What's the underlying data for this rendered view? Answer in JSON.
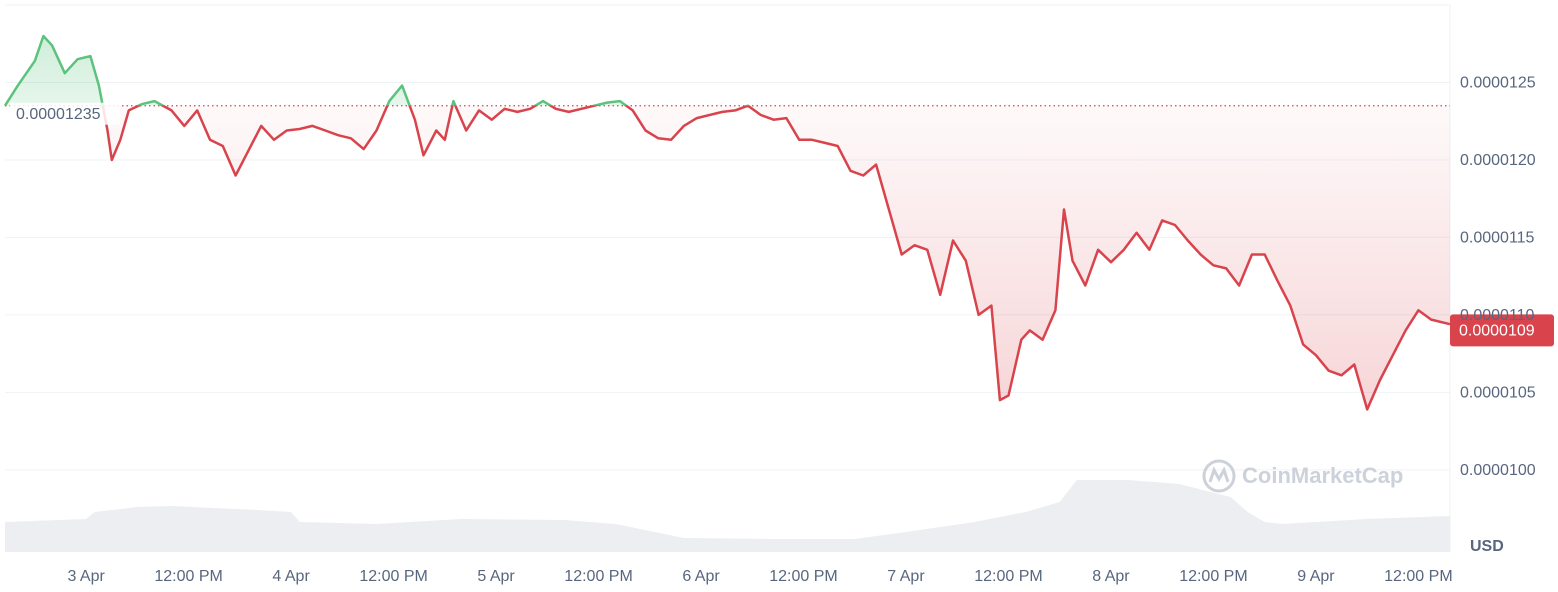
{
  "chart_data": {
    "type": "line",
    "currency": "USD",
    "watermark": "CoinMarketCap",
    "up_color": "#5bc37d",
    "down_color": "#d9434c",
    "grid": true,
    "baseline": {
      "value": 1.235e-05,
      "label": "0.00001235"
    },
    "current_price": {
      "value": 1.09e-05,
      "label": "0.0000109"
    },
    "xlim": [
      -9.5,
      159.7
    ],
    "xticks": [
      {
        "value": 0,
        "label": "3 Apr"
      },
      {
        "value": 12,
        "label": "12:00 PM"
      },
      {
        "value": 24,
        "label": "4 Apr"
      },
      {
        "value": 36,
        "label": "12:00 PM"
      },
      {
        "value": 48,
        "label": "5 Apr"
      },
      {
        "value": 60,
        "label": "12:00 PM"
      },
      {
        "value": 72,
        "label": "6 Apr"
      },
      {
        "value": 84,
        "label": "12:00 PM"
      },
      {
        "value": 96,
        "label": "7 Apr"
      },
      {
        "value": 108,
        "label": "12:00 PM"
      },
      {
        "value": 120,
        "label": "8 Apr"
      },
      {
        "value": 132,
        "label": "12:00 PM"
      },
      {
        "value": 144,
        "label": "9 Apr"
      },
      {
        "value": 156,
        "label": "12:00 PM"
      }
    ],
    "ylim": [
      9.47e-06,
      1.3e-05
    ],
    "yticks": [
      {
        "value": 1e-05,
        "label": "0.0000100"
      },
      {
        "value": 1.05e-05,
        "label": "0.0000105"
      },
      {
        "value": 1.1e-05,
        "label": "0.0000110"
      },
      {
        "value": 1.15e-05,
        "label": "0.0000115"
      },
      {
        "value": 1.2e-05,
        "label": "0.0000120"
      },
      {
        "value": 1.25e-05,
        "label": "0.0000125"
      }
    ],
    "x": [
      -9.5,
      -8,
      -6,
      -5,
      -4,
      -2.5,
      -1,
      0.5,
      1.5,
      2.5,
      3,
      4,
      5,
      6.5,
      8,
      10,
      11.5,
      13,
      14.5,
      16,
      17.5,
      19,
      20.5,
      22,
      23.5,
      25,
      26.5,
      28,
      29.5,
      31,
      32.5,
      34,
      35.5,
      37,
      38.5,
      39.5,
      41,
      42,
      43,
      44.5,
      46,
      47.5,
      49,
      50.5,
      52,
      53.5,
      55,
      56.5,
      58,
      59.5,
      61,
      62.5,
      64,
      65.5,
      67,
      68.5,
      70,
      71.5,
      73,
      74.5,
      76,
      77.5,
      79,
      80.5,
      82,
      83.5,
      85,
      86.5,
      88,
      89.5,
      91,
      92.5,
      94,
      95.5,
      97,
      98.5,
      100,
      101.5,
      103,
      104.5,
      106,
      107,
      108,
      109.5,
      110.5,
      112,
      113.5,
      114.5,
      115.5,
      117,
      118.5,
      120,
      121.5,
      123,
      124.5,
      126,
      127.5,
      129,
      130.5,
      132,
      133.5,
      135,
      136.5,
      138,
      139.5,
      141,
      142.5,
      144,
      145.5,
      147,
      148.5,
      150,
      151.5,
      153,
      154.5,
      156,
      157.5,
      159.7
    ],
    "values": [
      1.235e-05,
      1.248e-05,
      1.264e-05,
      1.28e-05,
      1.274e-05,
      1.256e-05,
      1.265e-05,
      1.267e-05,
      1.248e-05,
      1.219e-05,
      1.2e-05,
      1.213e-05,
      1.232e-05,
      1.236e-05,
      1.238e-05,
      1.232e-05,
      1.222e-05,
      1.232e-05,
      1.213e-05,
      1.209e-05,
      1.19e-05,
      1.206e-05,
      1.222e-05,
      1.213e-05,
      1.219e-05,
      1.22e-05,
      1.222e-05,
      1.219e-05,
      1.216e-05,
      1.214e-05,
      1.207e-05,
      1.219e-05,
      1.238e-05,
      1.248e-05,
      1.226e-05,
      1.203e-05,
      1.219e-05,
      1.213e-05,
      1.238e-05,
      1.219e-05,
      1.232e-05,
      1.226e-05,
      1.233e-05,
      1.231e-05,
      1.233e-05,
      1.238e-05,
      1.233e-05,
      1.231e-05,
      1.233e-05,
      1.235e-05,
      1.237e-05,
      1.238e-05,
      1.232e-05,
      1.219e-05,
      1.214e-05,
      1.213e-05,
      1.222e-05,
      1.227e-05,
      1.229e-05,
      1.231e-05,
      1.232e-05,
      1.235e-05,
      1.229e-05,
      1.226e-05,
      1.227e-05,
      1.213e-05,
      1.213e-05,
      1.211e-05,
      1.209e-05,
      1.193e-05,
      1.19e-05,
      1.197e-05,
      1.168e-05,
      1.139e-05,
      1.145e-05,
      1.142e-05,
      1.113e-05,
      1.148e-05,
      1.135e-05,
      1.1e-05,
      1.106e-05,
      1.045e-05,
      1.048e-05,
      1.084e-05,
      1.09e-05,
      1.084e-05,
      1.103e-05,
      1.168e-05,
      1.135e-05,
      1.119e-05,
      1.142e-05,
      1.134e-05,
      1.142e-05,
      1.153e-05,
      1.142e-05,
      1.161e-05,
      1.158e-05,
      1.148e-05,
      1.139e-05,
      1.132e-05,
      1.13e-05,
      1.119e-05,
      1.139e-05,
      1.139e-05,
      1.122e-05,
      1.106e-05,
      1.081e-05,
      1.074e-05,
      1.064e-05,
      1.061e-05,
      1.068e-05,
      1.039e-05,
      1.058e-05,
      1.074e-05,
      1.09e-05,
      1.103e-05,
      1.097e-05,
      1.094e-05
    ],
    "volume": {
      "color": "#eceef2",
      "ylim": [
        0,
        100
      ],
      "x": [
        -9.5,
        0,
        1,
        6,
        10,
        20,
        24,
        25,
        34,
        44,
        56,
        62,
        70,
        80,
        90,
        96,
        104,
        110,
        114,
        116,
        122,
        128,
        134,
        136,
        138,
        140,
        150,
        159.7
      ],
      "values": [
        30,
        33,
        40,
        45,
        46,
        42,
        40,
        30,
        28,
        33,
        32,
        28,
        14,
        13,
        13,
        20,
        30,
        40,
        50,
        72,
        72,
        68,
        55,
        40,
        30,
        28,
        33,
        36
      ]
    }
  }
}
